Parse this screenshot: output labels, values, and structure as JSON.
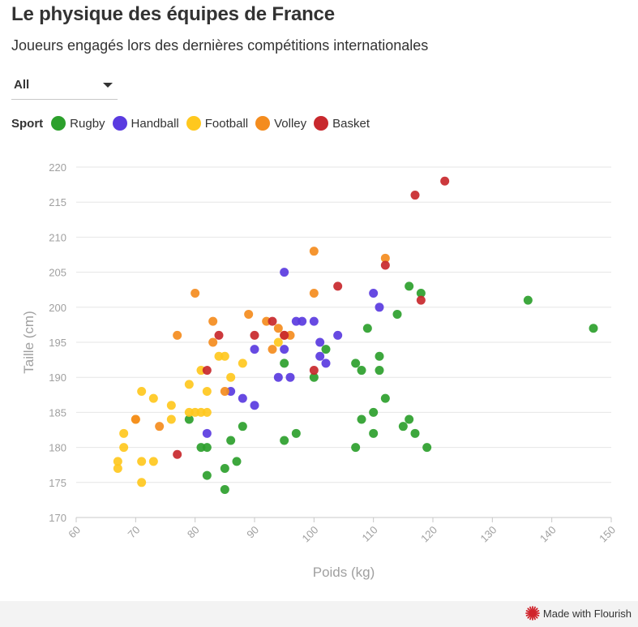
{
  "header": {
    "title": "Le physique des équipes de France",
    "subtitle": "Joueurs engagés lors des dernières compétitions internationales"
  },
  "filter": {
    "selected": "All"
  },
  "legend": {
    "title": "Sport",
    "items": [
      {
        "label": "Rugby",
        "color": "#2ca02c"
      },
      {
        "label": "Handball",
        "color": "#5a3be0"
      },
      {
        "label": "Football",
        "color": "#ffc81e"
      },
      {
        "label": "Volley",
        "color": "#f48c1e"
      },
      {
        "label": "Basket",
        "color": "#c8282d"
      }
    ]
  },
  "footer": {
    "credit": "Made with Flourish",
    "logo_icon": "flourish-logo-icon"
  },
  "chart_data": {
    "type": "scatter",
    "xlabel": "Poids (kg)",
    "ylabel": "Taille (cm)",
    "xlim": [
      60,
      150
    ],
    "ylim": [
      170,
      220
    ],
    "xticks": [
      60,
      70,
      80,
      90,
      100,
      110,
      120,
      130,
      140,
      150
    ],
    "yticks": [
      170,
      175,
      180,
      185,
      190,
      195,
      200,
      205,
      210,
      215,
      220
    ],
    "grid": "horizontal",
    "series": [
      {
        "name": "Rugby",
        "color": "#2ca02c",
        "points": [
          [
            79,
            184
          ],
          [
            81,
            180
          ],
          [
            82,
            180
          ],
          [
            82,
            176
          ],
          [
            85,
            177
          ],
          [
            85,
            174
          ],
          [
            86,
            181
          ],
          [
            87,
            178
          ],
          [
            88,
            183
          ],
          [
            95,
            192
          ],
          [
            95,
            181
          ],
          [
            97,
            182
          ],
          [
            100,
            190
          ],
          [
            102,
            194
          ],
          [
            107,
            192
          ],
          [
            107,
            180
          ],
          [
            108,
            191
          ],
          [
            108,
            184
          ],
          [
            109,
            197
          ],
          [
            110,
            185
          ],
          [
            110,
            182
          ],
          [
            111,
            193
          ],
          [
            111,
            191
          ],
          [
            112,
            187
          ],
          [
            114,
            199
          ],
          [
            115,
            183
          ],
          [
            116,
            203
          ],
          [
            116,
            184
          ],
          [
            117,
            182
          ],
          [
            118,
            202
          ],
          [
            119,
            180
          ],
          [
            136,
            201
          ],
          [
            147,
            197
          ]
        ]
      },
      {
        "name": "Handball",
        "color": "#5a3be0",
        "points": [
          [
            82,
            182
          ],
          [
            86,
            188
          ],
          [
            88,
            187
          ],
          [
            90,
            194
          ],
          [
            90,
            186
          ],
          [
            94,
            190
          ],
          [
            95,
            205
          ],
          [
            95,
            194
          ],
          [
            96,
            190
          ],
          [
            97,
            198
          ],
          [
            98,
            198
          ],
          [
            100,
            198
          ],
          [
            101,
            195
          ],
          [
            101,
            193
          ],
          [
            102,
            192
          ],
          [
            104,
            196
          ],
          [
            110,
            202
          ],
          [
            111,
            200
          ]
        ]
      },
      {
        "name": "Football",
        "color": "#ffc81e",
        "points": [
          [
            67,
            178
          ],
          [
            67,
            177
          ],
          [
            68,
            182
          ],
          [
            68,
            180
          ],
          [
            70,
            184
          ],
          [
            71,
            188
          ],
          [
            71,
            178
          ],
          [
            71,
            175
          ],
          [
            73,
            187
          ],
          [
            73,
            178
          ],
          [
            76,
            186
          ],
          [
            76,
            184
          ],
          [
            79,
            189
          ],
          [
            79,
            185
          ],
          [
            80,
            185
          ],
          [
            81,
            191
          ],
          [
            81,
            185
          ],
          [
            82,
            188
          ],
          [
            82,
            185
          ],
          [
            84,
            193
          ],
          [
            85,
            193
          ],
          [
            86,
            190
          ],
          [
            88,
            192
          ],
          [
            94,
            195
          ]
        ]
      },
      {
        "name": "Volley",
        "color": "#f48c1e",
        "points": [
          [
            70,
            184
          ],
          [
            74,
            183
          ],
          [
            77,
            196
          ],
          [
            80,
            202
          ],
          [
            83,
            198
          ],
          [
            83,
            195
          ],
          [
            85,
            188
          ],
          [
            89,
            199
          ],
          [
            92,
            198
          ],
          [
            93,
            194
          ],
          [
            94,
            197
          ],
          [
            95,
            196
          ],
          [
            96,
            196
          ],
          [
            100,
            208
          ],
          [
            100,
            202
          ],
          [
            112,
            207
          ]
        ]
      },
      {
        "name": "Basket",
        "color": "#c8282d",
        "points": [
          [
            77,
            179
          ],
          [
            82,
            191
          ],
          [
            84,
            196
          ],
          [
            90,
            196
          ],
          [
            93,
            198
          ],
          [
            95,
            196
          ],
          [
            100,
            191
          ],
          [
            104,
            203
          ],
          [
            112,
            206
          ],
          [
            117,
            216
          ],
          [
            118,
            201
          ],
          [
            122,
            218
          ]
        ]
      }
    ]
  }
}
